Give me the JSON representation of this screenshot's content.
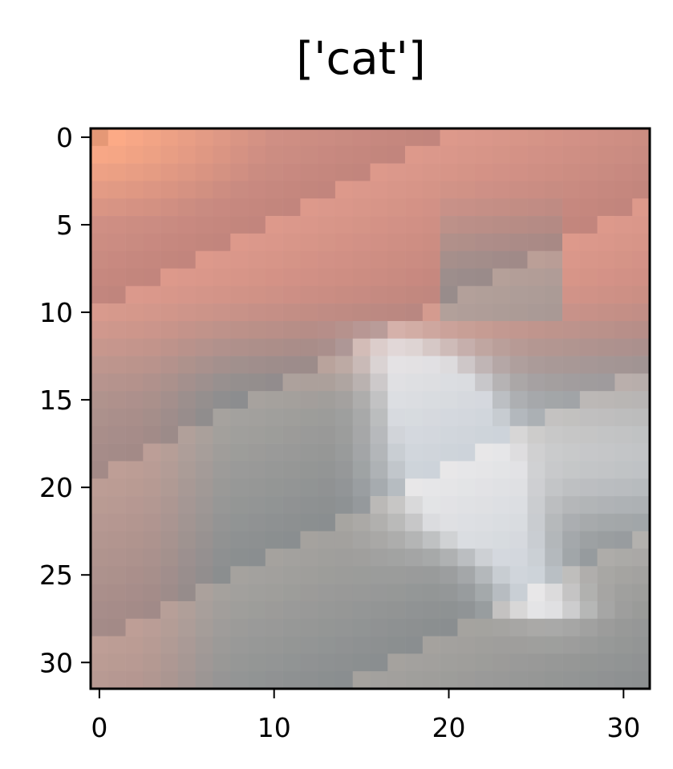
{
  "chart_data": {
    "type": "heatmap",
    "title": "['cat']",
    "xlabel": "",
    "ylabel": "",
    "xlim": [
      -0.5,
      31.5
    ],
    "ylim": [
      31.5,
      -0.5
    ],
    "x_ticks": [
      0,
      10,
      20,
      30
    ],
    "y_ticks": [
      0,
      5,
      10,
      15,
      20,
      25,
      30
    ],
    "x_tick_labels": [
      "0",
      "10",
      "20",
      "30"
    ],
    "y_tick_labels": [
      "0",
      "5",
      "10",
      "15",
      "20",
      "25",
      "30"
    ],
    "grid": false,
    "image_size": [
      32,
      32
    ],
    "colors": {
      "background": "#cf8f84",
      "bright_corner": "#f6a47d",
      "subject_gray": "#979897",
      "subject_white": "#e6e9ee",
      "axis": "#000000"
    }
  }
}
